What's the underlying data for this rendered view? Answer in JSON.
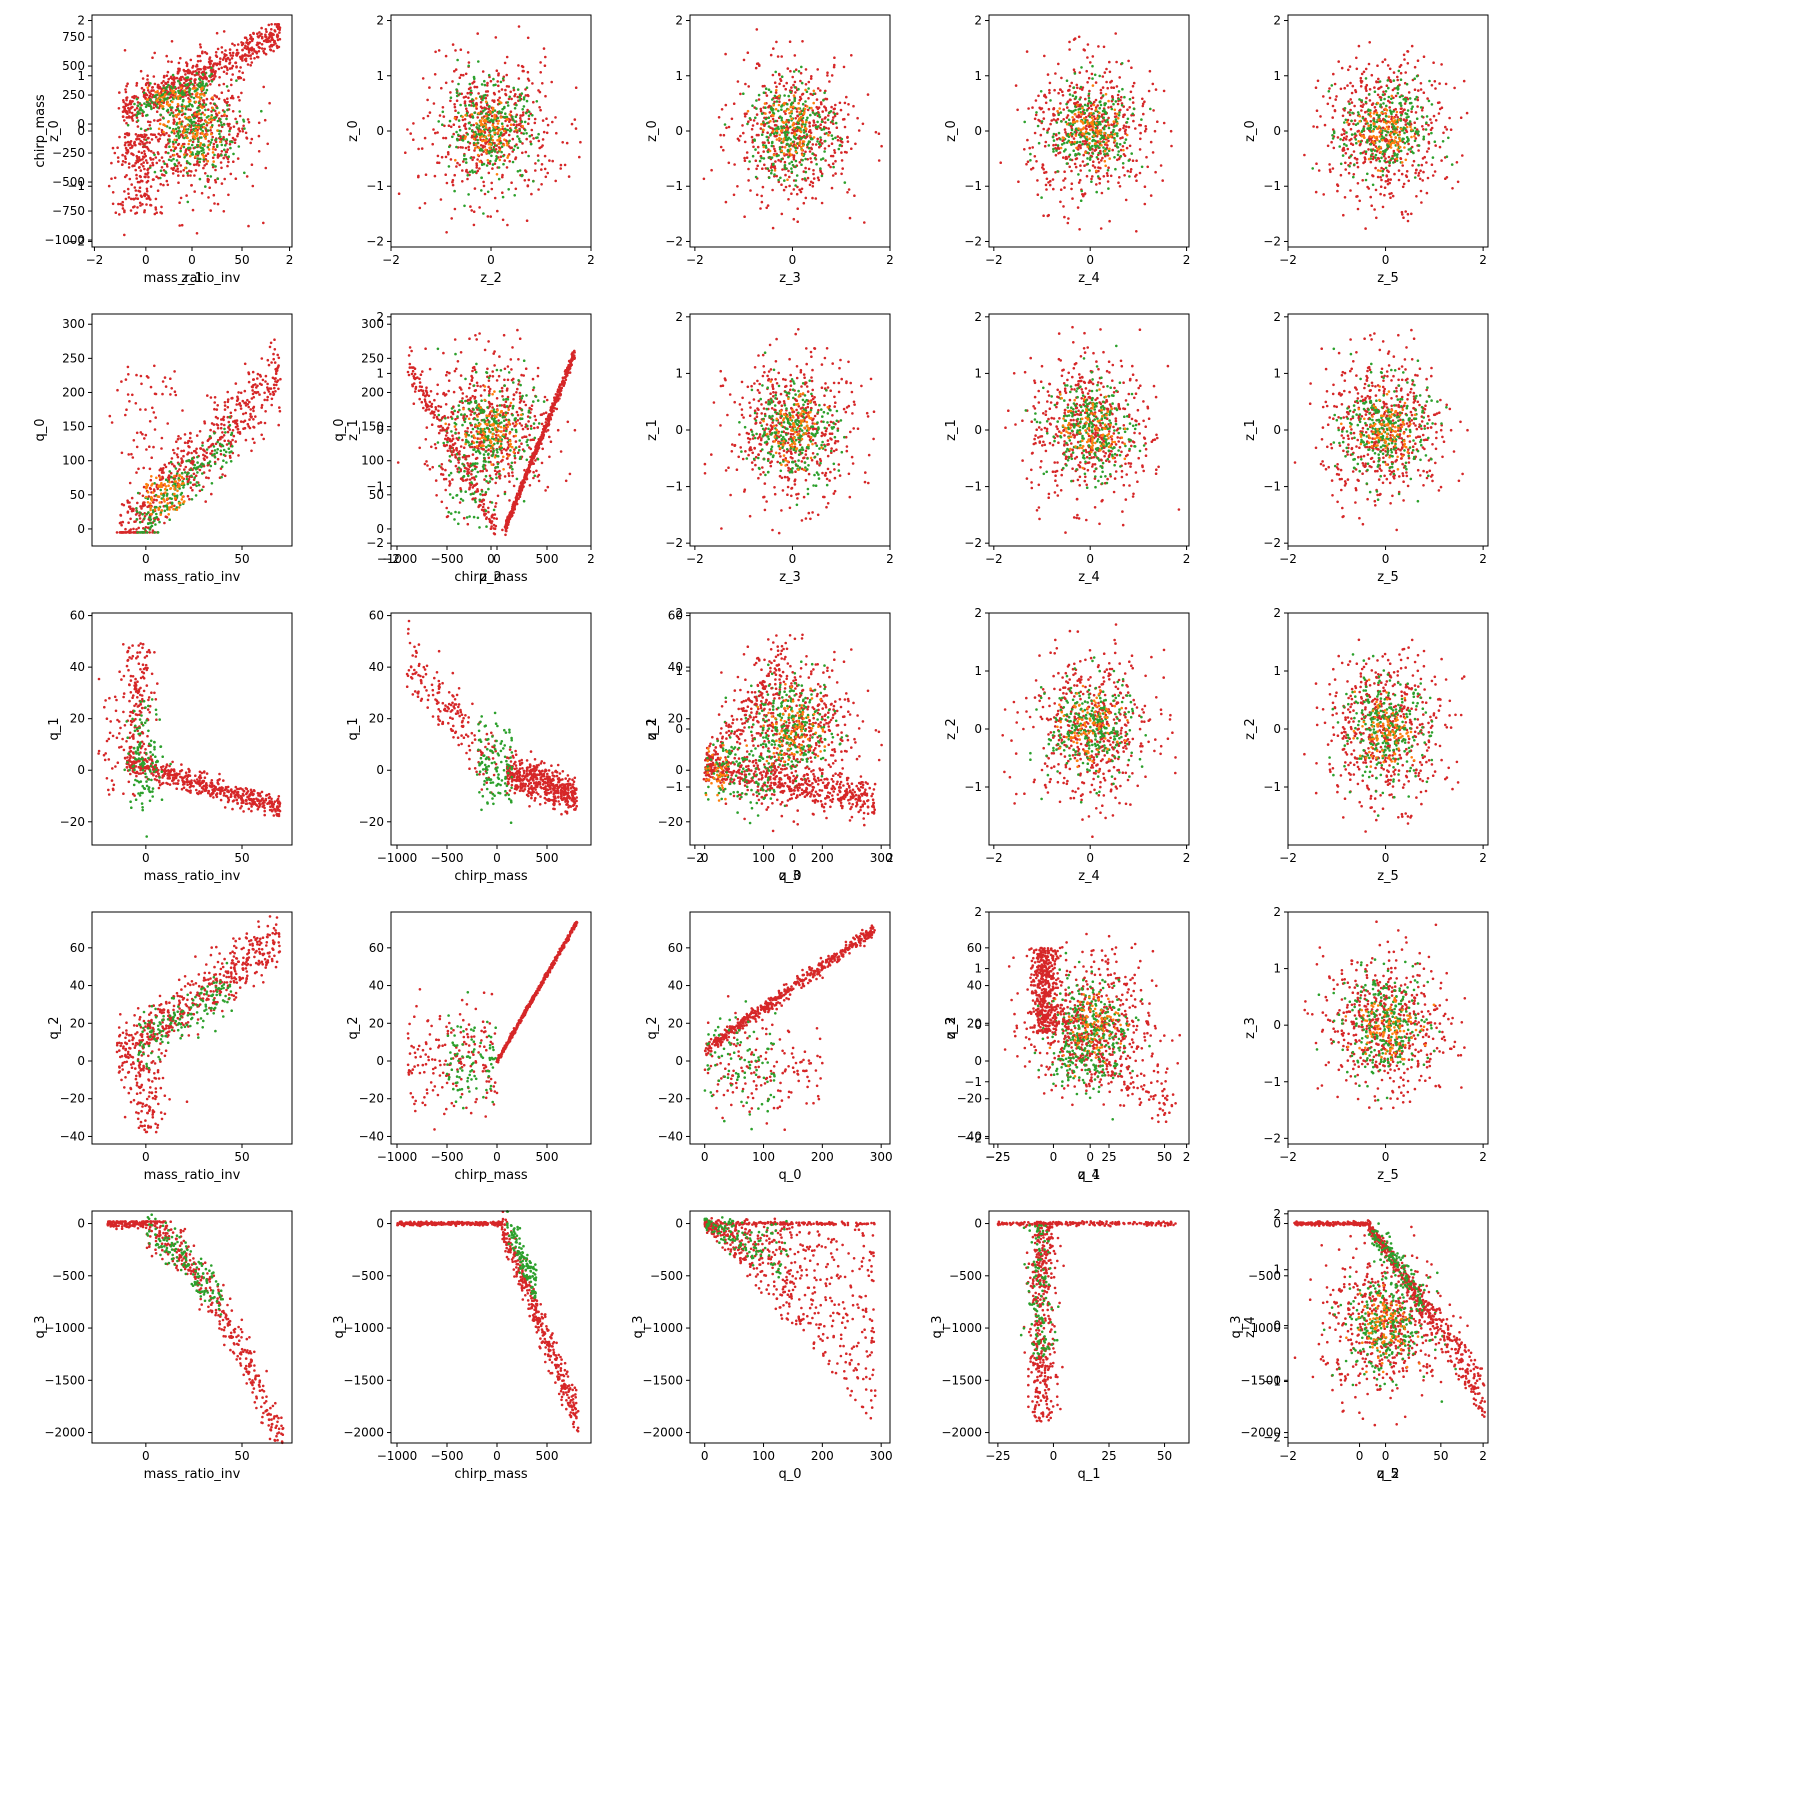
{
  "figure": {
    "colors": {
      "red": "#d62728",
      "green": "#2ca02c",
      "orange": "#ff7f0e"
    },
    "series_names": [
      "red",
      "green",
      "orange"
    ],
    "variables": [
      "mass_ratio_inv",
      "chirp_mass",
      "q_0",
      "q_1",
      "q_2",
      "q_3",
      "z_0",
      "z_1",
      "z_2",
      "z_3",
      "z_4",
      "z_5"
    ],
    "axes": {
      "mass_ratio_inv": {
        "lim": [
          -28,
          76
        ],
        "ticks": [
          0,
          50
        ]
      },
      "chirp_mass": {
        "lim": [
          -1060,
          940
        ],
        "ticks": [
          -1000,
          -500,
          0,
          500
        ],
        "yticks": [
          -1000,
          -750,
          -500,
          -250,
          0,
          250,
          500,
          750
        ]
      },
      "q_0": {
        "lim": [
          -25,
          315
        ],
        "ticks": [
          0,
          100,
          200,
          300
        ],
        "yticks": [
          0,
          50,
          100,
          150,
          200,
          250,
          300
        ]
      },
      "q_1": {
        "lim": [
          -29,
          61
        ],
        "ticks": [
          -25,
          0,
          25,
          50
        ],
        "yticks": [
          -20,
          0,
          20,
          40,
          60
        ]
      },
      "q_2": {
        "lim": [
          -44,
          79
        ],
        "ticks": [
          0,
          50
        ],
        "yticks": [
          -40,
          -20,
          0,
          20,
          40,
          60
        ]
      },
      "q_3": {
        "lim": [
          -2100,
          120
        ],
        "ticks": [
          -2000,
          -1500,
          -1000,
          -500,
          0
        ],
        "yticks": [
          -2000,
          -1500,
          -1000,
          -500,
          0
        ]
      },
      "z_0": {
        "lim": [
          -2.1,
          2.1
        ],
        "ticks": [
          -2,
          0,
          2
        ],
        "yticks": [
          -2,
          -1,
          0,
          1,
          2
        ]
      },
      "z_1": {
        "lim": [
          -2.05,
          2.05
        ],
        "ticks": [
          -2,
          0,
          2
        ],
        "yticks": [
          -2,
          -1,
          0,
          1,
          2
        ]
      },
      "z_2": {
        "lim": [
          -2.0,
          2.0
        ],
        "ticks": [
          -2,
          0,
          2
        ],
        "yticks": [
          -1,
          0,
          1,
          2
        ]
      },
      "z_3": {
        "lim": [
          -2.1,
          2.0
        ],
        "ticks": [
          -2,
          0,
          2
        ],
        "yticks": [
          -2,
          -1,
          0,
          1,
          2
        ]
      },
      "z_4": {
        "lim": [
          -2.1,
          2.05
        ],
        "ticks": [
          -2,
          0,
          2
        ],
        "yticks": [
          -2,
          -1,
          0,
          1,
          2
        ]
      },
      "z_5": {
        "lim": [
          -2.0,
          2.1
        ],
        "ticks": [
          -2,
          0,
          2
        ]
      }
    }
  },
  "chart_data": [
    {
      "type": "scatter",
      "xlabel": "z_1",
      "ylabel": "z_0",
      "pattern": "gaussian"
    },
    {
      "type": "scatter",
      "xlabel": "z_2",
      "ylabel": "z_0",
      "pattern": "gaussian"
    },
    {
      "type": "scatter",
      "xlabel": "z_3",
      "ylabel": "z_0",
      "pattern": "gaussian"
    },
    {
      "type": "scatter",
      "xlabel": "z_4",
      "ylabel": "z_0",
      "pattern": "gaussian"
    },
    {
      "type": "scatter",
      "xlabel": "z_5",
      "ylabel": "z_0",
      "pattern": "gaussian"
    },
    {
      "type": "scatter",
      "xlabel": "mass_ratio_inv",
      "ylabel": "chirp_mass",
      "pattern": "mr_chirp"
    },
    {
      "type": "scatter",
      "xlabel": "z_2",
      "ylabel": "z_1",
      "pattern": "gaussian"
    },
    {
      "type": "scatter",
      "xlabel": "z_3",
      "ylabel": "z_1",
      "pattern": "gaussian"
    },
    {
      "type": "scatter",
      "xlabel": "z_4",
      "ylabel": "z_1",
      "pattern": "gaussian"
    },
    {
      "type": "scatter",
      "xlabel": "z_5",
      "ylabel": "z_1",
      "pattern": "gaussian"
    },
    {
      "type": "scatter",
      "xlabel": "mass_ratio_inv",
      "ylabel": "q_0",
      "pattern": "mr_q0"
    },
    {
      "type": "scatter",
      "xlabel": "chirp_mass",
      "ylabel": "q_0",
      "pattern": "chirp_q0"
    },
    {
      "type": "scatter",
      "xlabel": "z_3",
      "ylabel": "z_2",
      "pattern": "gaussian"
    },
    {
      "type": "scatter",
      "xlabel": "z_4",
      "ylabel": "z_2",
      "pattern": "gaussian"
    },
    {
      "type": "scatter",
      "xlabel": "z_5",
      "ylabel": "z_2",
      "pattern": "gaussian"
    },
    {
      "type": "scatter",
      "xlabel": "mass_ratio_inv",
      "ylabel": "q_1",
      "pattern": "mr_q1"
    },
    {
      "type": "scatter",
      "xlabel": "chirp_mass",
      "ylabel": "q_1",
      "pattern": "chirp_q1"
    },
    {
      "type": "scatter",
      "xlabel": "q_0",
      "ylabel": "q_1",
      "pattern": "q0_q1"
    },
    {
      "type": "scatter",
      "xlabel": "z_4",
      "ylabel": "z_3",
      "pattern": "gaussian"
    },
    {
      "type": "scatter",
      "xlabel": "z_5",
      "ylabel": "z_3",
      "pattern": "gaussian"
    },
    {
      "type": "scatter",
      "xlabel": "mass_ratio_inv",
      "ylabel": "q_2",
      "pattern": "mr_q2"
    },
    {
      "type": "scatter",
      "xlabel": "chirp_mass",
      "ylabel": "q_2",
      "pattern": "chirp_q2"
    },
    {
      "type": "scatter",
      "xlabel": "q_0",
      "ylabel": "q_2",
      "pattern": "q0_q2"
    },
    {
      "type": "scatter",
      "xlabel": "q_1",
      "ylabel": "q_2",
      "pattern": "q1_q2"
    },
    {
      "type": "scatter",
      "xlabel": "z_5",
      "ylabel": "z_4",
      "pattern": "gaussian"
    },
    {
      "type": "scatter",
      "xlabel": "mass_ratio_inv",
      "ylabel": "q_3",
      "pattern": "mr_q3"
    },
    {
      "type": "scatter",
      "xlabel": "chirp_mass",
      "ylabel": "q_3",
      "pattern": "chirp_q3"
    },
    {
      "type": "scatter",
      "xlabel": "q_0",
      "ylabel": "q_3",
      "pattern": "q0_q3"
    },
    {
      "type": "scatter",
      "xlabel": "q_1",
      "ylabel": "q_3",
      "pattern": "q1_q3"
    },
    {
      "type": "scatter",
      "xlabel": "q_2",
      "ylabel": "q_3",
      "pattern": "q2_q3"
    }
  ]
}
